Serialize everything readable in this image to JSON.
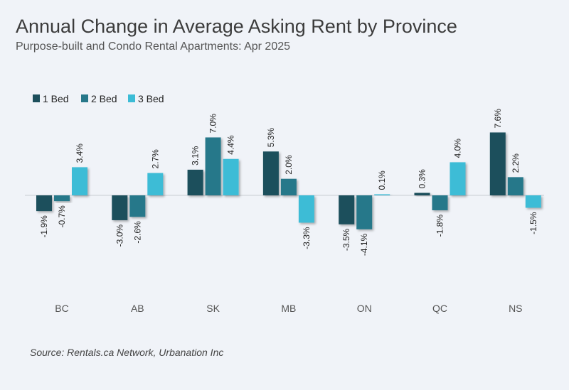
{
  "title": "Annual Change in Average Asking Rent by Province",
  "subtitle": "Purpose-built and Condo Rental Apartments: Apr 2025",
  "source": "Source: Rentals.ca Network, Urbanation Inc",
  "chart_data": {
    "type": "bar",
    "categories": [
      "BC",
      "AB",
      "SK",
      "MB",
      "ON",
      "QC",
      "NS"
    ],
    "series": [
      {
        "name": "1 Bed",
        "color": "#1d4f5c",
        "values": [
          -1.9,
          -3.0,
          3.1,
          5.3,
          -3.5,
          0.3,
          7.6
        ],
        "labels": [
          "-1.9%",
          "-3.0%",
          "3.1%",
          "5.3%",
          "-3.5%",
          "0.3%",
          "7.6%"
        ]
      },
      {
        "name": "2 Bed",
        "color": "#27788a",
        "values": [
          -0.7,
          -2.6,
          7.0,
          2.0,
          -4.1,
          -1.8,
          2.2
        ],
        "labels": [
          "-0.7%",
          "-2.6%",
          "7.0%",
          "2.0%",
          "-4.1%",
          "-1.8%",
          "2.2%"
        ]
      },
      {
        "name": "3 Bed",
        "color": "#3cbcd6",
        "values": [
          3.4,
          2.7,
          4.4,
          -3.3,
          0.1,
          4.0,
          -1.5
        ],
        "labels": [
          "3.4%",
          "2.7%",
          "4.4%",
          "-3.3%",
          "0.1%",
          "4.0%",
          "-1.5%"
        ]
      }
    ],
    "legend": "top-left",
    "grid": false,
    "ylim": [
      -10,
      10
    ],
    "xlabel": "",
    "ylabel": ""
  }
}
